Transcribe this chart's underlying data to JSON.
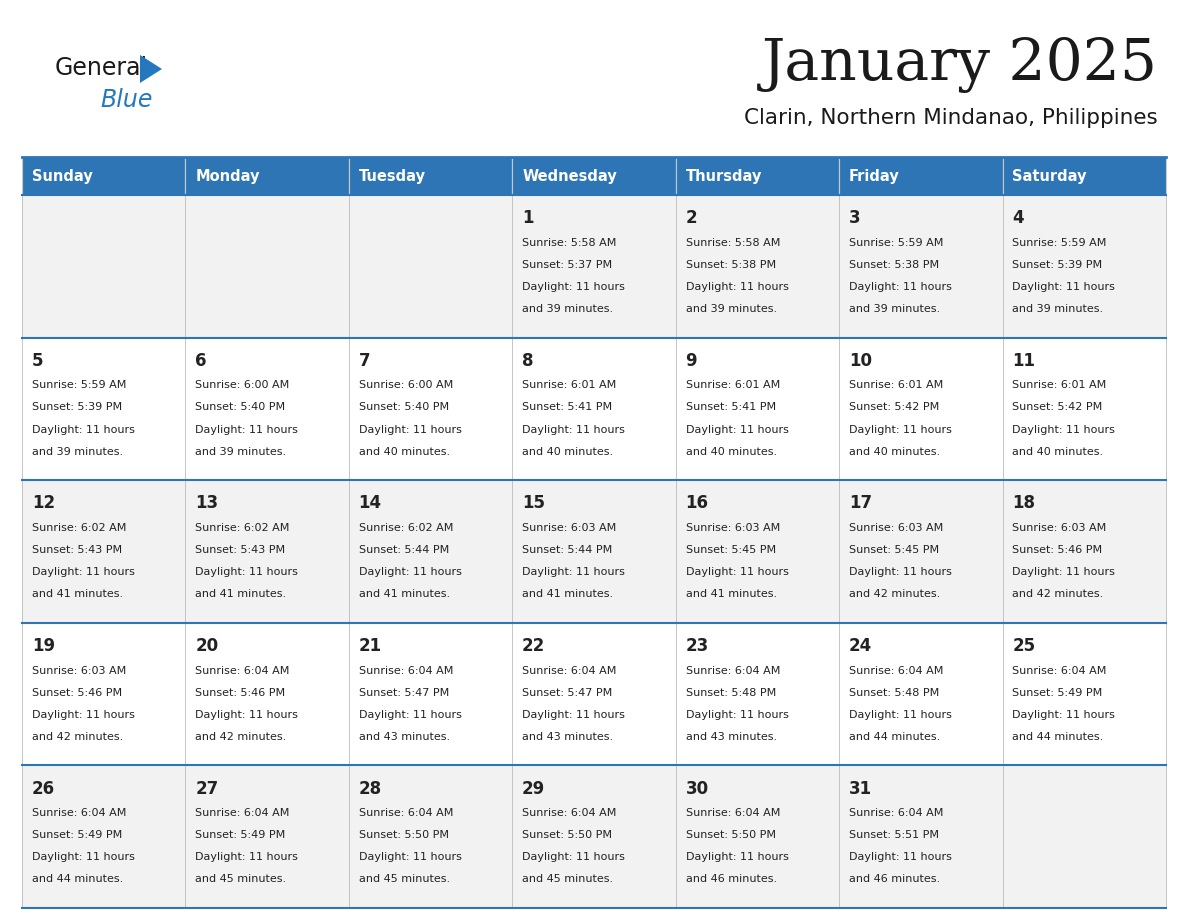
{
  "title": "January 2025",
  "subtitle": "Clarin, Northern Mindanao, Philippines",
  "days_of_week": [
    "Sunday",
    "Monday",
    "Tuesday",
    "Wednesday",
    "Thursday",
    "Friday",
    "Saturday"
  ],
  "header_bg": "#2E75B6",
  "header_text": "#FFFFFF",
  "cell_bg_light": "#F2F2F2",
  "cell_bg_white": "#FFFFFF",
  "cell_text": "#222222",
  "border_color": "#2E75B6",
  "logo_general_color": "#1a1a1a",
  "logo_blue_color": "#2478BE",
  "calendar": [
    [
      {
        "day": null,
        "sunrise": null,
        "sunset": null,
        "daylight": null
      },
      {
        "day": null,
        "sunrise": null,
        "sunset": null,
        "daylight": null
      },
      {
        "day": null,
        "sunrise": null,
        "sunset": null,
        "daylight": null
      },
      {
        "day": 1,
        "sunrise": "5:58 AM",
        "sunset": "5:37 PM",
        "daylight": "11 hours\nand 39 minutes."
      },
      {
        "day": 2,
        "sunrise": "5:58 AM",
        "sunset": "5:38 PM",
        "daylight": "11 hours\nand 39 minutes."
      },
      {
        "day": 3,
        "sunrise": "5:59 AM",
        "sunset": "5:38 PM",
        "daylight": "11 hours\nand 39 minutes."
      },
      {
        "day": 4,
        "sunrise": "5:59 AM",
        "sunset": "5:39 PM",
        "daylight": "11 hours\nand 39 minutes."
      }
    ],
    [
      {
        "day": 5,
        "sunrise": "5:59 AM",
        "sunset": "5:39 PM",
        "daylight": "11 hours\nand 39 minutes."
      },
      {
        "day": 6,
        "sunrise": "6:00 AM",
        "sunset": "5:40 PM",
        "daylight": "11 hours\nand 39 minutes."
      },
      {
        "day": 7,
        "sunrise": "6:00 AM",
        "sunset": "5:40 PM",
        "daylight": "11 hours\nand 40 minutes."
      },
      {
        "day": 8,
        "sunrise": "6:01 AM",
        "sunset": "5:41 PM",
        "daylight": "11 hours\nand 40 minutes."
      },
      {
        "day": 9,
        "sunrise": "6:01 AM",
        "sunset": "5:41 PM",
        "daylight": "11 hours\nand 40 minutes."
      },
      {
        "day": 10,
        "sunrise": "6:01 AM",
        "sunset": "5:42 PM",
        "daylight": "11 hours\nand 40 minutes."
      },
      {
        "day": 11,
        "sunrise": "6:01 AM",
        "sunset": "5:42 PM",
        "daylight": "11 hours\nand 40 minutes."
      }
    ],
    [
      {
        "day": 12,
        "sunrise": "6:02 AM",
        "sunset": "5:43 PM",
        "daylight": "11 hours\nand 41 minutes."
      },
      {
        "day": 13,
        "sunrise": "6:02 AM",
        "sunset": "5:43 PM",
        "daylight": "11 hours\nand 41 minutes."
      },
      {
        "day": 14,
        "sunrise": "6:02 AM",
        "sunset": "5:44 PM",
        "daylight": "11 hours\nand 41 minutes."
      },
      {
        "day": 15,
        "sunrise": "6:03 AM",
        "sunset": "5:44 PM",
        "daylight": "11 hours\nand 41 minutes."
      },
      {
        "day": 16,
        "sunrise": "6:03 AM",
        "sunset": "5:45 PM",
        "daylight": "11 hours\nand 41 minutes."
      },
      {
        "day": 17,
        "sunrise": "6:03 AM",
        "sunset": "5:45 PM",
        "daylight": "11 hours\nand 42 minutes."
      },
      {
        "day": 18,
        "sunrise": "6:03 AM",
        "sunset": "5:46 PM",
        "daylight": "11 hours\nand 42 minutes."
      }
    ],
    [
      {
        "day": 19,
        "sunrise": "6:03 AM",
        "sunset": "5:46 PM",
        "daylight": "11 hours\nand 42 minutes."
      },
      {
        "day": 20,
        "sunrise": "6:04 AM",
        "sunset": "5:46 PM",
        "daylight": "11 hours\nand 42 minutes."
      },
      {
        "day": 21,
        "sunrise": "6:04 AM",
        "sunset": "5:47 PM",
        "daylight": "11 hours\nand 43 minutes."
      },
      {
        "day": 22,
        "sunrise": "6:04 AM",
        "sunset": "5:47 PM",
        "daylight": "11 hours\nand 43 minutes."
      },
      {
        "day": 23,
        "sunrise": "6:04 AM",
        "sunset": "5:48 PM",
        "daylight": "11 hours\nand 43 minutes."
      },
      {
        "day": 24,
        "sunrise": "6:04 AM",
        "sunset": "5:48 PM",
        "daylight": "11 hours\nand 44 minutes."
      },
      {
        "day": 25,
        "sunrise": "6:04 AM",
        "sunset": "5:49 PM",
        "daylight": "11 hours\nand 44 minutes."
      }
    ],
    [
      {
        "day": 26,
        "sunrise": "6:04 AM",
        "sunset": "5:49 PM",
        "daylight": "11 hours\nand 44 minutes."
      },
      {
        "day": 27,
        "sunrise": "6:04 AM",
        "sunset": "5:49 PM",
        "daylight": "11 hours\nand 45 minutes."
      },
      {
        "day": 28,
        "sunrise": "6:04 AM",
        "sunset": "5:50 PM",
        "daylight": "11 hours\nand 45 minutes."
      },
      {
        "day": 29,
        "sunrise": "6:04 AM",
        "sunset": "5:50 PM",
        "daylight": "11 hours\nand 45 minutes."
      },
      {
        "day": 30,
        "sunrise": "6:04 AM",
        "sunset": "5:50 PM",
        "daylight": "11 hours\nand 46 minutes."
      },
      {
        "day": 31,
        "sunrise": "6:04 AM",
        "sunset": "5:51 PM",
        "daylight": "11 hours\nand 46 minutes."
      },
      {
        "day": null,
        "sunrise": null,
        "sunset": null,
        "daylight": null
      }
    ]
  ]
}
